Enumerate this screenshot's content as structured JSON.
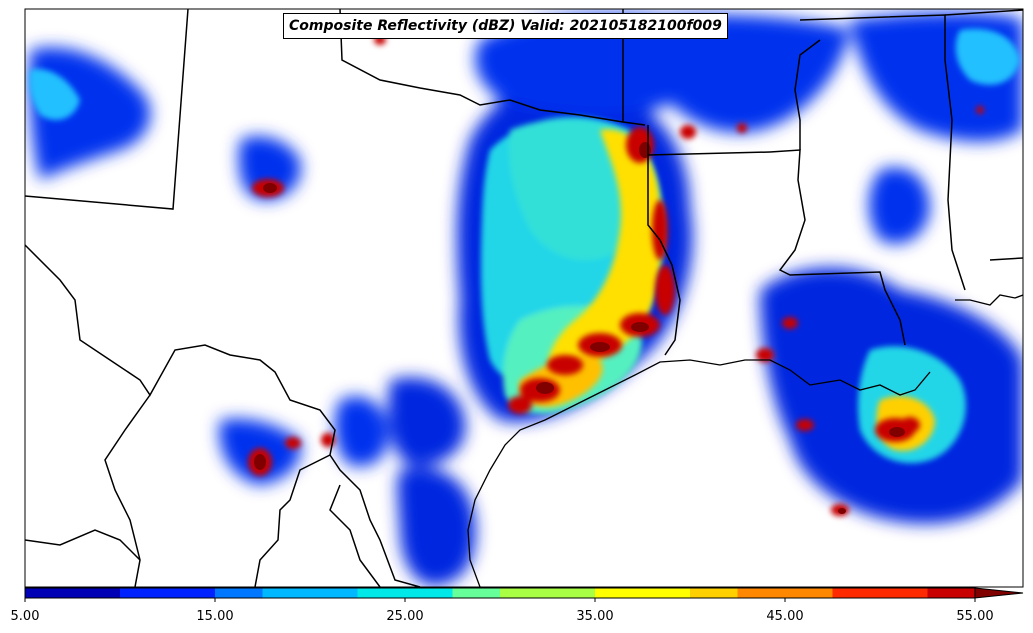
{
  "title": "Composite Reflectivity (dBZ) Valid: 202105182100f009",
  "colorbar": {
    "tick_labels": [
      "5.00",
      "15.00",
      "25.00",
      "35.00",
      "45.00",
      "55.00"
    ],
    "min": 5,
    "max": 55,
    "step": 5,
    "extend": "max",
    "colors": [
      "#0000b4",
      "#0022ff",
      "#0077ff",
      "#00b8ff",
      "#00e8e8",
      "#66ff99",
      "#a8ff44",
      "#ffff00",
      "#ffd000",
      "#ff8800",
      "#ff2a00",
      "#c80000",
      "#800000"
    ]
  }
}
